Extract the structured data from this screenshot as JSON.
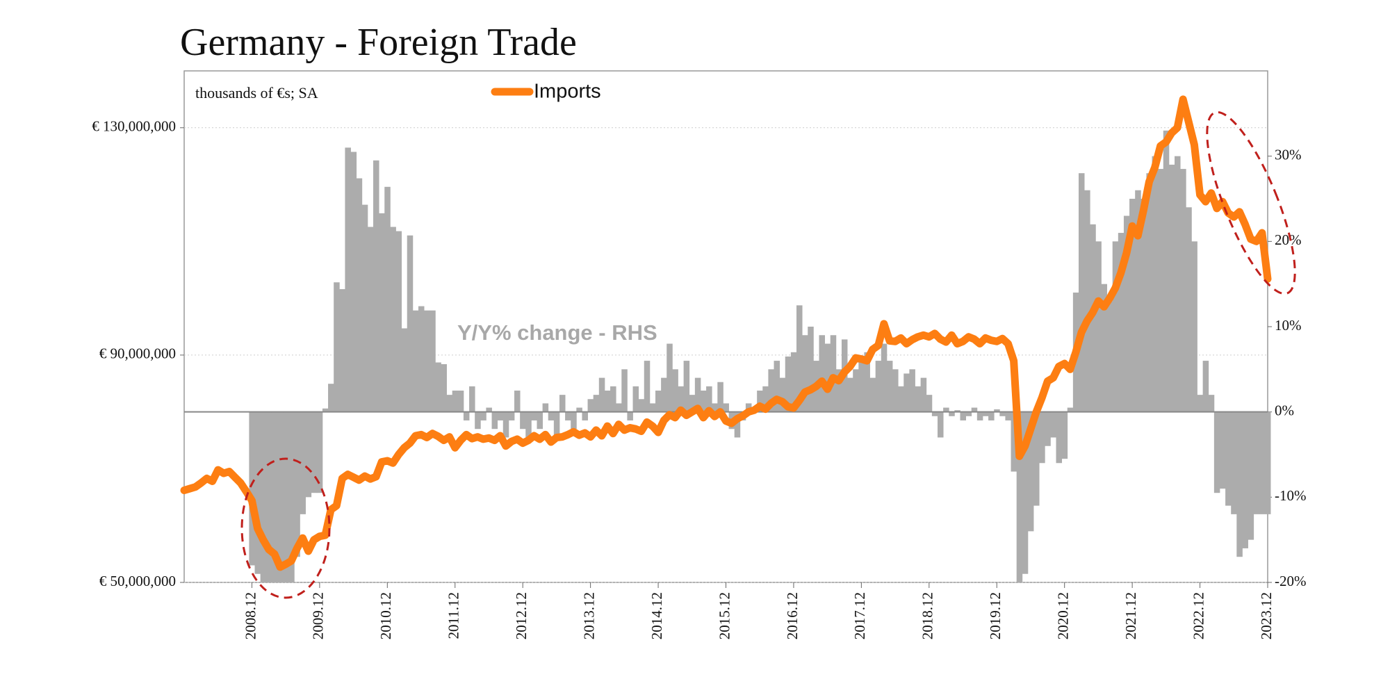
{
  "chart_data": {
    "type": "bar_line",
    "title": "Germany - Foreign Trade",
    "subtitle": "thousands of €s; SA",
    "annotation": "Y/Y% change - RHS",
    "categories": [
      null,
      null,
      null,
      null,
      null,
      null,
      null,
      null,
      null,
      null,
      null,
      null,
      "2008.12",
      null,
      null,
      null,
      null,
      null,
      null,
      null,
      null,
      null,
      null,
      null,
      "2009.12",
      null,
      null,
      null,
      null,
      null,
      null,
      null,
      null,
      null,
      null,
      null,
      "2010.12",
      null,
      null,
      null,
      null,
      null,
      null,
      null,
      null,
      null,
      null,
      null,
      "2011.12",
      null,
      null,
      null,
      null,
      null,
      null,
      null,
      null,
      null,
      null,
      null,
      "2012.12",
      null,
      null,
      null,
      null,
      null,
      null,
      null,
      null,
      null,
      null,
      null,
      "2013.12",
      null,
      null,
      null,
      null,
      null,
      null,
      null,
      null,
      null,
      null,
      null,
      "2014.12",
      null,
      null,
      null,
      null,
      null,
      null,
      null,
      null,
      null,
      null,
      null,
      "2015.12",
      null,
      null,
      null,
      null,
      null,
      null,
      null,
      null,
      null,
      null,
      null,
      "2016.12",
      null,
      null,
      null,
      null,
      null,
      null,
      null,
      null,
      null,
      null,
      null,
      "2017.12",
      null,
      null,
      null,
      null,
      null,
      null,
      null,
      null,
      null,
      null,
      null,
      "2018.12",
      null,
      null,
      null,
      null,
      null,
      null,
      null,
      null,
      null,
      null,
      null,
      "2019.12",
      null,
      null,
      null,
      null,
      null,
      null,
      null,
      null,
      null,
      null,
      null,
      "2020.12",
      null,
      null,
      null,
      null,
      null,
      null,
      null,
      null,
      null,
      null,
      null,
      "2021.12",
      null,
      null,
      null,
      null,
      null,
      null,
      null,
      null,
      null,
      null,
      null,
      "2022.12",
      null,
      null,
      null,
      null,
      null,
      null,
      null,
      null,
      null,
      null,
      null,
      "2023.12"
    ],
    "series": [
      {
        "name": "Y/Y% change",
        "type": "bar",
        "axis": "y2",
        "color": "#acacac",
        "values": [
          null,
          null,
          null,
          null,
          null,
          null,
          null,
          null,
          null,
          null,
          null,
          null,
          -18,
          -19,
          -20,
          -20,
          -20,
          -20,
          -20,
          -20,
          -17,
          -12,
          -10,
          -9.5,
          -9.5,
          0.4,
          3.3,
          15.2,
          14.4,
          31,
          30.5,
          27.4,
          24.3,
          21.7,
          29.5,
          23.3,
          26.4,
          21.7,
          21.2,
          9.8,
          20.7,
          11.9,
          12.4,
          11.9,
          11.9,
          5.8,
          5.6,
          2,
          2.5,
          2.5,
          -1,
          3,
          -2,
          -1,
          0.5,
          -2,
          -1,
          -3,
          -1,
          2.5,
          -2,
          -3,
          -1,
          -2,
          1,
          -1,
          -3,
          2,
          -1,
          -2,
          0.5,
          -1,
          1.5,
          2,
          4,
          2.5,
          3,
          1,
          5,
          -1,
          3,
          1.5,
          6,
          1,
          2.5,
          4,
          8,
          5,
          3,
          6,
          2,
          4,
          2.5,
          3,
          1,
          3.5,
          1,
          -2,
          -3,
          -1,
          1,
          0.5,
          2.5,
          3,
          5,
          6,
          4,
          6.5,
          7,
          12.5,
          9,
          10,
          6,
          9,
          8,
          9,
          5,
          8.5,
          4,
          5,
          6,
          7,
          4,
          6,
          8,
          6,
          5,
          3,
          4.5,
          5,
          3,
          4,
          2,
          -0.5,
          -3,
          0.5,
          -0.5,
          0.2,
          -1,
          -0.5,
          0.5,
          -1,
          -0.5,
          -1,
          0.3,
          -0.5,
          -1,
          -7,
          -20,
          -19,
          -14,
          -11,
          -6,
          -4,
          -3,
          -6,
          -5.5,
          0.5,
          14,
          28,
          26,
          22,
          20,
          15,
          13,
          20,
          21,
          23,
          25,
          26,
          25,
          28,
          30,
          28.5,
          33,
          29,
          30,
          28.5,
          24,
          20,
          2,
          6,
          2,
          -9.5,
          -9,
          -11,
          -12,
          -17,
          -16,
          -15,
          -12,
          -12,
          -12
        ]
      },
      {
        "name": "Imports",
        "type": "line",
        "axis": "y",
        "color": "#fd7e12",
        "values": [
          66200000,
          66500000,
          66800000,
          67500000,
          68300000,
          67800000,
          69800000,
          69200000,
          69500000,
          68500000,
          67500000,
          66000000,
          64400000,
          59500000,
          57500000,
          55800000,
          55000000,
          52700000,
          53200000,
          53800000,
          56000000,
          57800000,
          55500000,
          57500000,
          58100000,
          58300000,
          62800000,
          63500000,
          68300000,
          69000000,
          68500000,
          68000000,
          68700000,
          68200000,
          68600000,
          71200000,
          71400000,
          71000000,
          72500000,
          73700000,
          74500000,
          75800000,
          76000000,
          75500000,
          76200000,
          75700000,
          75000000,
          75600000,
          73700000,
          75000000,
          76000000,
          75300000,
          75600000,
          75200000,
          75400000,
          75000000,
          75800000,
          74000000,
          74800000,
          75200000,
          74500000,
          75000000,
          75800000,
          75200000,
          76000000,
          74700000,
          75500000,
          75600000,
          76000000,
          76500000,
          75900000,
          76300000,
          75600000,
          76800000,
          75800000,
          77500000,
          76200000,
          77800000,
          76800000,
          77200000,
          77000000,
          76600000,
          78200000,
          77500000,
          76400000,
          78500000,
          79500000,
          79000000,
          80300000,
          79400000,
          80000000,
          80600000,
          79000000,
          80200000,
          79200000,
          80000000,
          78400000,
          78000000,
          78800000,
          79300000,
          80000000,
          80300000,
          81000000,
          80500000,
          81500000,
          82200000,
          81800000,
          80900000,
          80700000,
          82000000,
          83500000,
          83900000,
          84500000,
          85400000,
          84000000,
          86000000,
          85500000,
          87000000,
          88000000,
          89500000,
          89300000,
          89000000,
          91000000,
          91700000,
          95500000,
          92500000,
          92400000,
          93000000,
          92000000,
          92700000,
          93200000,
          93500000,
          93200000,
          93800000,
          92800000,
          92300000,
          93500000,
          92000000,
          92400000,
          93200000,
          92800000,
          92000000,
          93000000,
          92600000,
          92400000,
          92900000,
          92000000,
          89000000,
          72200000,
          74000000,
          77000000,
          80000000,
          82500000,
          85400000,
          86000000,
          88000000,
          88500000,
          87500000,
          90500000,
          94000000,
          96000000,
          97500000,
          99500000,
          98500000,
          100000000,
          101800000,
          104500000,
          108000000,
          112700000,
          111000000,
          115500000,
          120500000,
          123000000,
          126800000,
          127500000,
          129100000,
          130000000,
          135000000,
          131000000,
          127000000,
          118200000,
          117000000,
          118500000,
          115800000,
          117000000,
          115000000,
          114300000,
          115200000,
          113000000,
          110400000,
          110000000,
          111500000,
          103400000
        ]
      }
    ],
    "ylim": [
      50000000,
      140000000
    ],
    "yticks": [
      {
        "value": 50000000,
        "label": "€ 50,000,000"
      },
      {
        "value": 90000000,
        "label": "€ 90,000,000"
      },
      {
        "value": 130000000,
        "label": "€ 130,000,000"
      }
    ],
    "y2lim": [
      -20,
      40
    ],
    "y2ticks": [
      {
        "value": -20,
        "label": "-20%"
      },
      {
        "value": -10,
        "label": "-10%"
      },
      {
        "value": 0,
        "label": "0%"
      },
      {
        "value": 10,
        "label": "10%"
      },
      {
        "value": 20,
        "label": "20%"
      },
      {
        "value": 30,
        "label": "30%"
      }
    ],
    "grid": true,
    "legend": "top"
  }
}
